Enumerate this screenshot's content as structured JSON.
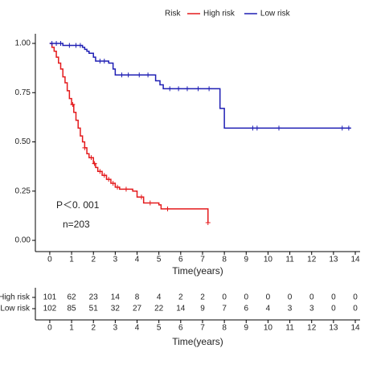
{
  "chart_data": [
    {
      "type": "survival",
      "legend_title": "Risk",
      "x_label": "Time(years)",
      "annotations": [
        "P＜0. 001",
        "n=203"
      ],
      "xlim": [
        -0.66,
        14.22
      ],
      "ylim": [
        -0.057,
        1.049
      ],
      "xticks": [
        0,
        1,
        2,
        3,
        4,
        5,
        6,
        7,
        8,
        9,
        10,
        11,
        12,
        13,
        14
      ],
      "yticks": [
        {
          "value": 0,
          "label": "0.00"
        },
        {
          "value": 0.25,
          "label": "0.25"
        },
        {
          "value": 0.5,
          "label": "0.50"
        },
        {
          "value": 0.75,
          "label": "0.75"
        },
        {
          "value": 1,
          "label": "1.00"
        }
      ],
      "series": [
        {
          "name": "High risk",
          "color": "#e41a1c",
          "x": [
            0,
            0.1,
            0.2,
            0.3,
            0.4,
            0.5,
            0.6,
            0.7,
            0.8,
            0.9,
            1.0,
            1.1,
            1.2,
            1.3,
            1.4,
            1.5,
            1.6,
            1.7,
            1.8,
            2.0,
            2.1,
            2.2,
            2.4,
            2.6,
            2.8,
            3.0,
            3.2,
            3.8,
            4.0,
            4.3,
            5.0,
            5.1,
            7.25,
            7.25
          ],
          "values": [
            1,
            0.98,
            0.96,
            0.93,
            0.9,
            0.87,
            0.83,
            0.8,
            0.76,
            0.72,
            0.69,
            0.65,
            0.61,
            0.57,
            0.53,
            0.5,
            0.47,
            0.44,
            0.42,
            0.39,
            0.37,
            0.35,
            0.33,
            0.31,
            0.29,
            0.27,
            0.26,
            0.25,
            0.22,
            0.19,
            0.18,
            0.16,
            0.16,
            0.09
          ],
          "censor_x": [
            1.05,
            1.6,
            1.9,
            2.05,
            2.3,
            2.5,
            2.7,
            2.9,
            3.1,
            3.5,
            4.2,
            4.6,
            5.4,
            7.25
          ]
        },
        {
          "name": "Low risk",
          "color": "#1f1fb4",
          "x": [
            0,
            0.6,
            1.5,
            1.6,
            1.7,
            1.8,
            2.0,
            2.1,
            2.7,
            2.9,
            3.0,
            4.85,
            5.05,
            5.2,
            7.8,
            8.0,
            13.8
          ],
          "values": [
            1,
            0.99,
            0.98,
            0.97,
            0.96,
            0.95,
            0.93,
            0.91,
            0.9,
            0.87,
            0.84,
            0.81,
            0.79,
            0.77,
            0.67,
            0.57,
            0.57
          ],
          "censor_x": [
            0.1,
            0.3,
            0.5,
            0.9,
            1.2,
            1.4,
            2.3,
            2.5,
            3.3,
            3.6,
            4.1,
            4.5,
            5.5,
            5.9,
            6.3,
            6.8,
            7.3,
            9.3,
            9.5,
            10.5,
            13.4,
            13.7
          ]
        }
      ]
    },
    {
      "type": "risk_table",
      "x_label": "Time(years)",
      "xlim": [
        -0.66,
        14.22
      ],
      "xticks": [
        0,
        1,
        2,
        3,
        4,
        5,
        6,
        7,
        8,
        9,
        10,
        11,
        12,
        13,
        14
      ],
      "series": [
        {
          "name": "High risk",
          "color": "#e41a1c",
          "values": [
            101,
            62,
            23,
            14,
            8,
            4,
            2,
            2,
            0,
            0,
            0,
            0,
            0,
            0,
            0
          ]
        },
        {
          "name": "Low risk",
          "color": "#1f1fb4",
          "values": [
            102,
            85,
            51,
            32,
            27,
            22,
            14,
            9,
            7,
            6,
            4,
            3,
            3,
            0,
            0
          ]
        }
      ]
    }
  ]
}
